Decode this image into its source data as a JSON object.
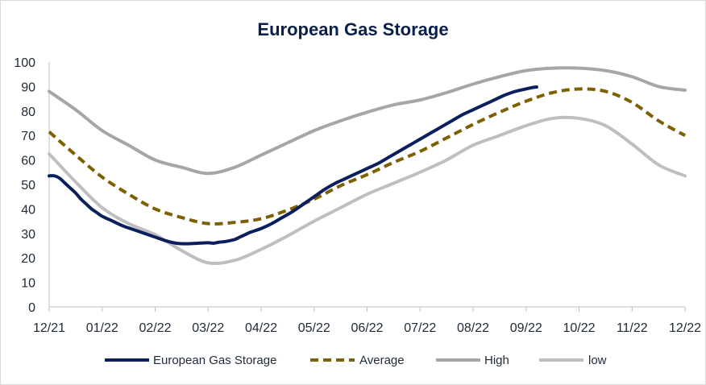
{
  "chart_data": {
    "type": "line",
    "title": "European Gas Storage",
    "xlabel": "",
    "ylabel": "",
    "ylim": [
      0,
      100
    ],
    "yticks": [
      0,
      10,
      20,
      30,
      40,
      50,
      60,
      70,
      80,
      90,
      100
    ],
    "xlim": [
      0,
      12
    ],
    "x_tick_labels": [
      "12/21",
      "01/22",
      "02/22",
      "03/22",
      "04/22",
      "05/22",
      "06/22",
      "07/22",
      "08/22",
      "09/22",
      "10/22",
      "11/22",
      "12/22"
    ],
    "x": [
      0,
      0.5,
      1,
      1.5,
      2,
      2.5,
      3,
      3.5,
      4,
      4.5,
      5,
      5.5,
      6,
      6.5,
      7,
      7.5,
      8,
      8.5,
      9,
      9.5,
      10,
      10.5,
      11,
      11.5,
      12
    ],
    "legend_position": "bottom",
    "series": [
      {
        "name": "European Gas Storage",
        "color": "#0b1f5c",
        "style": "solid",
        "x": [
          0,
          0.1,
          0.2,
          0.3,
          0.4,
          0.5,
          0.6,
          0.7,
          0.8,
          0.9,
          1,
          1.2,
          1.4,
          1.6,
          1.8,
          2,
          2.2,
          2.4,
          2.6,
          2.8,
          3,
          3.1,
          3.2,
          3.3,
          3.4,
          3.5,
          3.6,
          3.7,
          3.8,
          4,
          4.2,
          4.4,
          4.6,
          4.8,
          5,
          5.2,
          5.4,
          5.6,
          5.8,
          6,
          6.2,
          6.4,
          6.6,
          6.8,
          7,
          7.2,
          7.4,
          7.6,
          7.8,
          8,
          8.2,
          8.4,
          8.6,
          8.8,
          9,
          9.1,
          9.2
        ],
        "values": [
          53.5,
          53.5,
          52.5,
          50.5,
          48.5,
          46.5,
          44,
          42,
          40,
          38.5,
          37,
          35,
          33,
          31.5,
          30,
          28.5,
          27,
          26,
          25.8,
          26,
          26.2,
          26,
          26.4,
          26.6,
          27,
          27.5,
          28.5,
          29.5,
          30.5,
          32,
          34,
          36.5,
          39,
          42,
          45,
          48,
          50.5,
          52.5,
          54.5,
          56.5,
          58.5,
          61,
          63.5,
          66,
          68.5,
          71,
          73.5,
          76,
          78.5,
          80.5,
          82.5,
          84.5,
          86.5,
          88,
          89,
          89.5,
          89.8
        ]
      },
      {
        "name": "Average",
        "color": "#7f6000",
        "style": "dashed",
        "values": [
          71.5,
          62,
          53,
          46,
          40,
          36.5,
          34,
          34.5,
          36,
          39.5,
          44,
          49.5,
          54,
          59,
          63.5,
          69,
          74.5,
          79.5,
          84,
          87.5,
          89,
          88,
          83.5,
          76,
          70
        ]
      },
      {
        "name": "High",
        "color": "#a6a6a6",
        "style": "solid",
        "values": [
          88,
          80.5,
          72,
          66,
          60,
          57,
          54.5,
          57,
          62,
          67,
          72,
          76,
          79.5,
          82.5,
          84.5,
          87.5,
          91,
          94,
          96.5,
          97.5,
          97.5,
          96.5,
          94,
          90,
          88.5
        ]
      },
      {
        "name": "low",
        "color": "#bfbfbf",
        "style": "solid",
        "values": [
          62.5,
          51,
          40.5,
          34,
          29.5,
          23,
          18,
          19,
          23.5,
          29,
          35,
          40.5,
          46,
          50.5,
          55,
          60,
          66,
          70,
          74,
          77,
          77,
          74,
          66.5,
          58,
          53.5
        ]
      }
    ]
  }
}
